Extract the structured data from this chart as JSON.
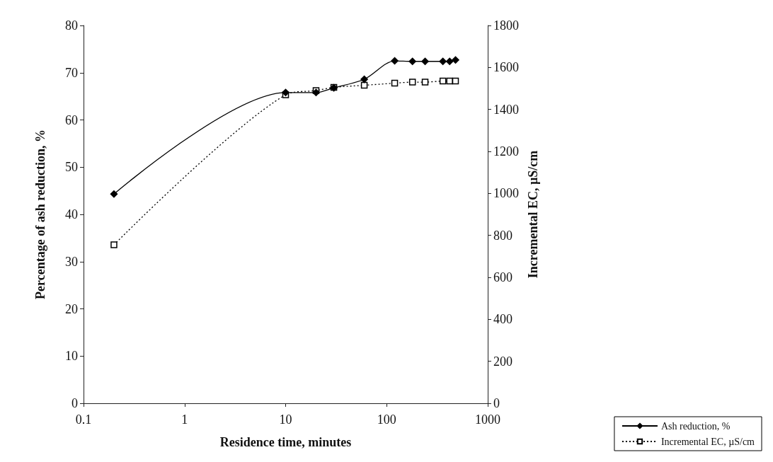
{
  "chart_data": {
    "type": "line",
    "xlabel": "Residence time, minutes",
    "ylabel": "Percentage of ash reduction, %",
    "y2label": "Incremental EC, µS/cm",
    "log": "x",
    "xlim": [
      0.1,
      1000
    ],
    "xticks": [
      0.1,
      1,
      10,
      100,
      1000
    ],
    "ylim": [
      0,
      80
    ],
    "yticks": [
      0,
      10,
      20,
      30,
      40,
      50,
      60,
      70,
      80
    ],
    "y2lim": [
      0,
      1800
    ],
    "y2ticks": [
      0,
      200,
      400,
      600,
      800,
      1000,
      1200,
      1400,
      1600,
      1800
    ],
    "grid": false,
    "legend": "bottom right",
    "series": [
      {
        "name": "Ash reduction, %",
        "color": "#000000",
        "marker": "diamond",
        "line_style": "solid",
        "x": [
          0.2,
          10,
          20,
          30,
          60,
          120,
          180,
          240,
          360,
          420,
          480
        ],
        "values": [
          44.3,
          65.8,
          65.8,
          66.8,
          68.6,
          72.5,
          72.4,
          72.4,
          72.4,
          72.4,
          72.7
        ]
      },
      {
        "name": "Incremental EC, µS/cm",
        "color": "#000000",
        "marker": "square",
        "line_style": "dotted",
        "axis": "y2",
        "x": [
          0.2,
          10,
          20,
          30,
          60,
          120,
          180,
          240,
          360,
          420,
          480
        ],
        "values": [
          755,
          1470,
          1490,
          1505,
          1515,
          1525,
          1530,
          1530,
          1535,
          1535,
          1535
        ]
      }
    ]
  }
}
